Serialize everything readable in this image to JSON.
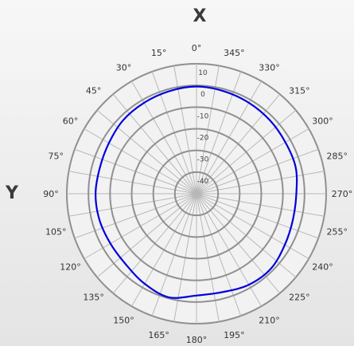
{
  "chart_data": {
    "type": "polar-line",
    "top_axis_label": "X",
    "left_axis_label": "Y",
    "angle_direction": "counterclockwise",
    "zero_angle_at": "top",
    "angle_ticks": [
      0,
      15,
      30,
      45,
      60,
      75,
      90,
      105,
      120,
      135,
      150,
      165,
      180,
      195,
      210,
      225,
      240,
      255,
      270,
      285,
      300,
      315,
      330,
      345
    ],
    "angle_unit": "°",
    "radial_ticks": [
      10,
      0,
      -10,
      -20,
      -30,
      -40
    ],
    "rlim": [
      -50,
      10
    ],
    "series": [
      {
        "color": "#0000dd",
        "theta": [
          0,
          15,
          30,
          45,
          60,
          75,
          90,
          105,
          120,
          135,
          150,
          165,
          180,
          195,
          210,
          225,
          240,
          255,
          270,
          285,
          300,
          315,
          330,
          345
        ],
        "r": [
          -0.5,
          -1,
          -1.5,
          -2,
          -3.2,
          -3.7,
          -3.3,
          -3.5,
          -4,
          -3.8,
          -2,
          -0.5,
          -3,
          -3,
          -1.5,
          -1.2,
          -2.8,
          -3.8,
          -3.8,
          -2.5,
          -2.5,
          -2,
          -1.5,
          -1
        ]
      }
    ]
  }
}
